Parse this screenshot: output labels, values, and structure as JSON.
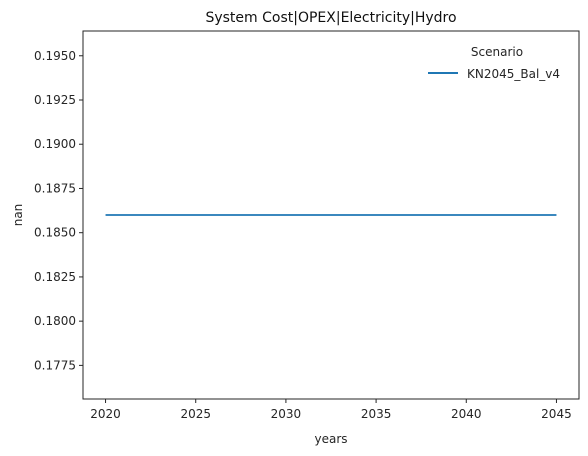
{
  "chart_data": {
    "type": "line",
    "title": "System Cost|OPEX|Electricity|Hydro",
    "xlabel": "years",
    "ylabel": "nan",
    "xlim": [
      2018.75,
      2046.25
    ],
    "ylim": [
      0.1756,
      0.1964
    ],
    "x_ticks": [
      2020,
      2025,
      2030,
      2035,
      2040,
      2045
    ],
    "x_tick_labels": [
      "2020",
      "2025",
      "2030",
      "2035",
      "2040",
      "2045"
    ],
    "y_ticks": [
      0.1775,
      0.18,
      0.1825,
      0.185,
      0.1875,
      0.19,
      0.1925,
      0.195
    ],
    "y_tick_labels": [
      "0.1775",
      "0.1800",
      "0.1825",
      "0.1850",
      "0.1875",
      "0.1900",
      "0.1925",
      "0.1950"
    ],
    "grid": false,
    "legend": {
      "title": "Scenario",
      "position": "top-right"
    },
    "series": [
      {
        "name": "KN2045_Bal_v4",
        "color": "#1f77b4",
        "x": [
          2020,
          2025,
          2030,
          2035,
          2040,
          2045
        ],
        "y": [
          0.186,
          0.186,
          0.186,
          0.186,
          0.186,
          0.186
        ]
      }
    ]
  }
}
